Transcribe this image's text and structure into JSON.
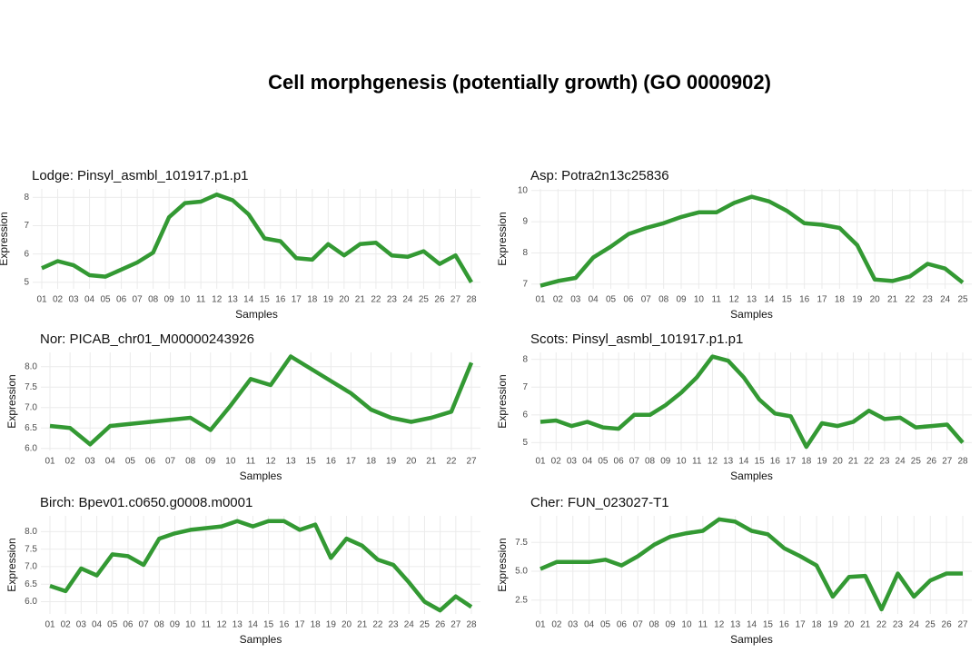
{
  "title": "Cell morphgenesis (potentially growth) (GO 0000902)",
  "chart_data": [
    {
      "type": "line",
      "title": "Lodge: Pinsyl_asmbl_101917.p1.p1",
      "xlabel": "Samples",
      "ylabel": "Expression",
      "color": "#339933",
      "grid": true,
      "categories": [
        "01",
        "02",
        "03",
        "04",
        "05",
        "06",
        "07",
        "08",
        "09",
        "10",
        "11",
        "12",
        "13",
        "14",
        "15",
        "16",
        "17",
        "18",
        "19",
        "20",
        "21",
        "22",
        "23",
        "24",
        "25",
        "26",
        "27",
        "28"
      ],
      "values": [
        5.5,
        5.75,
        5.6,
        5.25,
        5.2,
        5.45,
        5.7,
        6.05,
        7.3,
        7.8,
        7.85,
        8.1,
        7.9,
        7.4,
        6.55,
        6.45,
        5.85,
        5.8,
        6.35,
        5.95,
        6.35,
        6.4,
        5.95,
        5.9,
        6.1,
        5.65,
        5.95,
        5.0
      ],
      "ylim": [
        4.77,
        8.3
      ],
      "yticks": [
        5,
        6,
        7,
        8
      ]
    },
    {
      "type": "line",
      "title": "Asp: Potra2n13c25836",
      "xlabel": "Samples",
      "ylabel": "Expression",
      "color": "#339933",
      "grid": true,
      "categories": [
        "01",
        "02",
        "03",
        "04",
        "05",
        "06",
        "07",
        "08",
        "09",
        "10",
        "11",
        "12",
        "13",
        "14",
        "15",
        "16",
        "17",
        "18",
        "19",
        "20",
        "21",
        "22",
        "23",
        "24",
        "25"
      ],
      "values": [
        6.95,
        7.1,
        7.2,
        7.85,
        8.2,
        8.6,
        8.8,
        8.95,
        9.15,
        9.3,
        9.3,
        9.6,
        9.8,
        9.65,
        9.35,
        8.95,
        8.9,
        8.8,
        8.25,
        7.15,
        7.1,
        7.25,
        7.65,
        7.5,
        7.05
      ],
      "ylim": [
        6.85,
        10.05
      ],
      "yticks": [
        7,
        8,
        9,
        10
      ]
    },
    {
      "type": "line",
      "title": "Nor: PICAB_chr01_M00000243926",
      "xlabel": "Samples",
      "ylabel": "Expression",
      "color": "#339933",
      "grid": true,
      "categories": [
        "01",
        "02",
        "03",
        "04",
        "05",
        "06",
        "07",
        "08",
        "09",
        "10",
        "11",
        "12",
        "13",
        "15",
        "16",
        "17",
        "18",
        "19",
        "20",
        "21",
        "22",
        "27"
      ],
      "values": [
        6.55,
        6.5,
        6.1,
        6.55,
        6.6,
        6.65,
        6.7,
        6.75,
        6.45,
        7.05,
        7.7,
        7.55,
        8.25,
        7.95,
        7.65,
        7.35,
        6.95,
        6.75,
        6.65,
        6.75,
        6.9,
        8.1
      ],
      "ylim": [
        5.95,
        8.35
      ],
      "yticks": [
        {
          "value": 6,
          "label": "6.0"
        },
        6.5,
        {
          "value": 7,
          "label": "7.0"
        },
        7.5,
        {
          "value": 8,
          "label": "8.0"
        }
      ]
    },
    {
      "type": "line",
      "title": "Scots: Pinsyl_asmbl_101917.p1.p1",
      "xlabel": "Samples",
      "ylabel": "Expression",
      "color": "#339933",
      "grid": true,
      "categories": [
        "01",
        "02",
        "03",
        "04",
        "05",
        "06",
        "07",
        "08",
        "09",
        "10",
        "11",
        "12",
        "13",
        "14",
        "15",
        "16",
        "17",
        "18",
        "19",
        "20",
        "21",
        "22",
        "23",
        "24",
        "25",
        "26",
        "27",
        "28"
      ],
      "values": [
        5.75,
        5.8,
        5.6,
        5.75,
        5.55,
        5.5,
        6.0,
        6.0,
        6.35,
        6.8,
        7.35,
        8.1,
        7.95,
        7.35,
        6.55,
        6.05,
        5.95,
        4.85,
        5.7,
        5.6,
        5.75,
        6.15,
        5.85,
        5.9,
        5.55,
        5.6,
        5.65,
        5.0
      ],
      "ylim": [
        4.72,
        8.25
      ],
      "yticks": [
        5,
        6,
        7,
        8
      ]
    },
    {
      "type": "line",
      "title": "Birch: Bpev01.c0650.g0008.m0001",
      "xlabel": "Samples",
      "ylabel": "Expression",
      "color": "#339933",
      "grid": true,
      "categories": [
        "01",
        "02",
        "03",
        "04",
        "05",
        "06",
        "07",
        "08",
        "09",
        "10",
        "11",
        "12",
        "13",
        "14",
        "15",
        "16",
        "17",
        "18",
        "19",
        "20",
        "21",
        "22",
        "23",
        "24",
        "25",
        "26",
        "27",
        "28"
      ],
      "values": [
        6.45,
        6.3,
        6.95,
        6.75,
        7.35,
        7.3,
        7.05,
        7.8,
        7.95,
        8.05,
        8.1,
        8.15,
        8.3,
        8.15,
        8.3,
        8.3,
        8.05,
        8.2,
        7.25,
        7.8,
        7.6,
        7.2,
        7.05,
        6.55,
        6.0,
        5.75,
        6.15,
        5.85
      ],
      "ylim": [
        5.65,
        8.45
      ],
      "yticks": [
        {
          "value": 6,
          "label": "6.0"
        },
        6.5,
        {
          "value": 7,
          "label": "7.0"
        },
        7.5,
        {
          "value": 8,
          "label": "8.0"
        }
      ]
    },
    {
      "type": "line",
      "title": "Cher: FUN_023027-T1",
      "xlabel": "Samples",
      "ylabel": "Expression",
      "color": "#339933",
      "grid": true,
      "categories": [
        "01",
        "02",
        "03",
        "04",
        "05",
        "06",
        "07",
        "08",
        "09",
        "10",
        "11",
        "12",
        "13",
        "14",
        "15",
        "16",
        "17",
        "18",
        "19",
        "20",
        "21",
        "22",
        "23",
        "24",
        "25",
        "26",
        "27"
      ],
      "values": [
        5.2,
        5.8,
        5.8,
        5.8,
        6.0,
        5.5,
        6.3,
        7.3,
        8.0,
        8.3,
        8.5,
        9.5,
        9.3,
        8.5,
        8.2,
        7.0,
        6.3,
        5.5,
        2.8,
        4.5,
        4.6,
        1.7,
        4.8,
        2.8,
        4.2,
        4.8,
        4.8
      ],
      "ylim": [
        1.3,
        9.8
      ],
      "yticks": [
        2.5,
        {
          "value": 5,
          "label": "5.0"
        },
        7.5
      ]
    }
  ]
}
